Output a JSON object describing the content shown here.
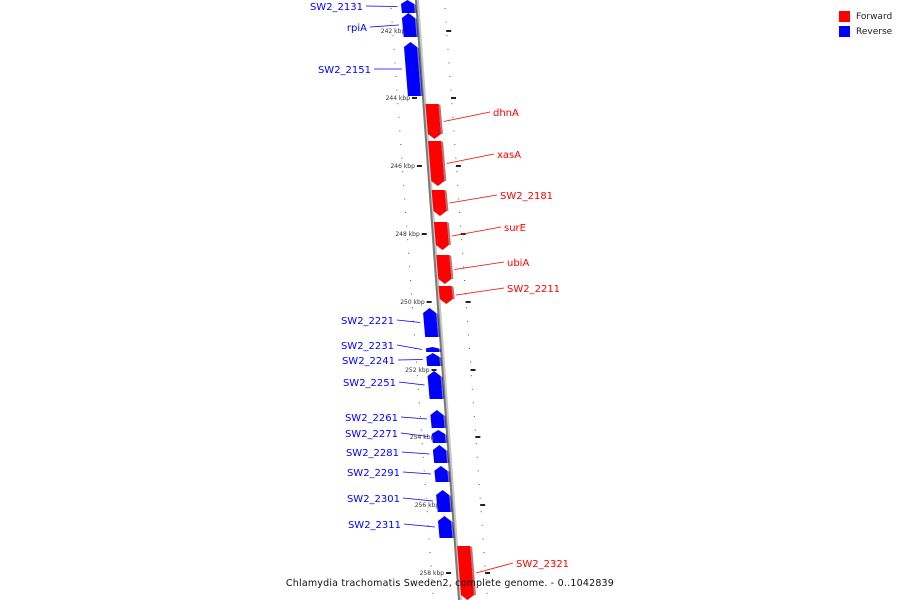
{
  "legend": {
    "forward_label": "Forward",
    "reverse_label": "Reverse",
    "forward_color": "#ff0000",
    "reverse_color": "#0000ff"
  },
  "caption": "Chlamydia trachomatis Sweden2, complete genome. - 0..1042839",
  "ruler": {
    "tick_labels": [
      "242 kbp",
      "244 kbp",
      "246 kbp",
      "248 kbp",
      "250 kbp",
      "252 kbp",
      "254 kbp",
      "256 kbp",
      "258 kbp"
    ]
  },
  "genes": [
    {
      "name": "SW2_2131",
      "strand": "reverse"
    },
    {
      "name": "rpiA",
      "strand": "reverse"
    },
    {
      "name": "SW2_2151",
      "strand": "reverse"
    },
    {
      "name": "dhnA",
      "strand": "forward"
    },
    {
      "name": "xasA",
      "strand": "forward"
    },
    {
      "name": "SW2_2181",
      "strand": "forward"
    },
    {
      "name": "surE",
      "strand": "forward"
    },
    {
      "name": "ubiA",
      "strand": "forward"
    },
    {
      "name": "SW2_2211",
      "strand": "forward"
    },
    {
      "name": "SW2_2221",
      "strand": "reverse"
    },
    {
      "name": "SW2_2231",
      "strand": "reverse"
    },
    {
      "name": "SW2_2241",
      "strand": "reverse"
    },
    {
      "name": "SW2_2251",
      "strand": "reverse"
    },
    {
      "name": "SW2_2261",
      "strand": "reverse"
    },
    {
      "name": "SW2_2271",
      "strand": "reverse"
    },
    {
      "name": "SW2_2281",
      "strand": "reverse"
    },
    {
      "name": "SW2_2291",
      "strand": "reverse"
    },
    {
      "name": "SW2_2301",
      "strand": "reverse"
    },
    {
      "name": "SW2_2311",
      "strand": "reverse"
    },
    {
      "name": "SW2_2321",
      "strand": "forward"
    }
  ]
}
